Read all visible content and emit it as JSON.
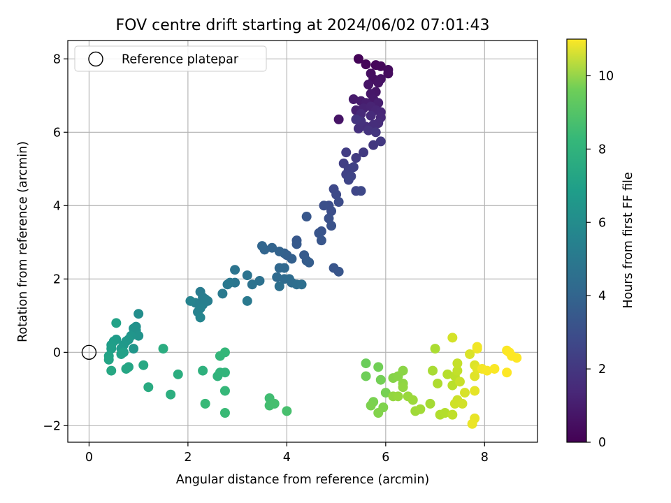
{
  "chart_data": {
    "type": "scatter",
    "title": "FOV centre drift starting at 2024/06/02 07:01:43",
    "xlabel": "Angular distance from reference (arcmin)",
    "ylabel": "Rotation from reference (arcmin)",
    "xlim": [
      -0.43,
      9.07
    ],
    "ylim": [
      -2.45,
      8.5
    ],
    "xticks": [
      0,
      2,
      4,
      6,
      8
    ],
    "yticks": [
      -2,
      0,
      2,
      4,
      6,
      8
    ],
    "grid": true,
    "legend": {
      "placement": "top-left",
      "entries": [
        "Reference platepar"
      ]
    },
    "reference_point": {
      "x": 0,
      "y": 0
    },
    "colorbar": {
      "label": "Hours from first FF file",
      "colormap": "viridis",
      "range": [
        0,
        11
      ],
      "ticks": [
        0,
        2,
        4,
        6,
        8,
        10
      ]
    },
    "points_xyc": [
      [
        5.45,
        8.0,
        0.1
      ],
      [
        5.6,
        7.85,
        0.15
      ],
      [
        5.8,
        7.83,
        0.2
      ],
      [
        5.9,
        7.8,
        0.25
      ],
      [
        6.05,
        7.7,
        0.3
      ],
      [
        6.05,
        7.6,
        0.35
      ],
      [
        5.7,
        7.6,
        0.4
      ],
      [
        5.75,
        7.45,
        0.45
      ],
      [
        5.9,
        7.45,
        0.5
      ],
      [
        5.85,
        7.35,
        0.55
      ],
      [
        5.65,
        7.3,
        0.6
      ],
      [
        5.8,
        7.1,
        0.65
      ],
      [
        5.7,
        7.05,
        0.7
      ],
      [
        5.75,
        6.9,
        0.75
      ],
      [
        5.35,
        6.9,
        0.8
      ],
      [
        5.5,
        6.85,
        0.85
      ],
      [
        5.6,
        6.8,
        0.9
      ],
      [
        5.85,
        6.8,
        0.95
      ],
      [
        5.05,
        6.35,
        0.6
      ],
      [
        5.4,
        6.6,
        1.0
      ],
      [
        5.55,
        6.65,
        1.05
      ],
      [
        5.7,
        6.7,
        1.1
      ],
      [
        5.8,
        6.6,
        1.15
      ],
      [
        5.9,
        6.55,
        1.2
      ],
      [
        5.9,
        6.4,
        1.25
      ],
      [
        5.5,
        6.5,
        1.3
      ],
      [
        5.7,
        6.45,
        1.35
      ],
      [
        5.85,
        6.25,
        1.4
      ],
      [
        5.75,
        6.2,
        1.45
      ],
      [
        5.6,
        6.15,
        1.5
      ],
      [
        5.45,
        6.1,
        1.55
      ],
      [
        5.5,
        6.3,
        1.6
      ],
      [
        5.65,
        6.05,
        1.65
      ],
      [
        5.4,
        6.35,
        1.7
      ],
      [
        5.8,
        6.0,
        1.75
      ],
      [
        5.75,
        5.65,
        1.8
      ],
      [
        5.9,
        5.75,
        1.85
      ],
      [
        5.55,
        5.45,
        1.9
      ],
      [
        5.4,
        5.3,
        1.95
      ],
      [
        5.2,
        5.45,
        2.0
      ],
      [
        5.15,
        5.15,
        2.05
      ],
      [
        5.25,
        5.0,
        2.1
      ],
      [
        5.35,
        5.05,
        2.15
      ],
      [
        5.2,
        4.85,
        2.2
      ],
      [
        5.3,
        4.8,
        2.25
      ],
      [
        5.25,
        4.7,
        2.3
      ],
      [
        5.4,
        4.4,
        2.35
      ],
      [
        5.5,
        4.4,
        2.4
      ],
      [
        4.95,
        4.45,
        2.45
      ],
      [
        5.0,
        4.3,
        2.5
      ],
      [
        5.05,
        4.1,
        2.55
      ],
      [
        4.85,
        4.0,
        2.6
      ],
      [
        4.9,
        3.85,
        2.65
      ],
      [
        4.75,
        4.0,
        2.7
      ],
      [
        4.85,
        3.65,
        2.75
      ],
      [
        4.9,
        3.45,
        2.8
      ],
      [
        4.7,
        3.3,
        2.85
      ],
      [
        4.65,
        3.25,
        2.9
      ],
      [
        4.7,
        3.05,
        2.95
      ],
      [
        4.4,
        3.7,
        3.0
      ],
      [
        4.95,
        2.3,
        2.9
      ],
      [
        5.05,
        2.2,
        2.95
      ],
      [
        4.2,
        3.05,
        3.05
      ],
      [
        4.2,
        2.95,
        3.1
      ],
      [
        4.35,
        2.65,
        3.15
      ],
      [
        4.4,
        2.5,
        3.2
      ],
      [
        4.45,
        2.45,
        3.25
      ],
      [
        4.0,
        2.65,
        3.3
      ],
      [
        4.1,
        2.55,
        3.35
      ],
      [
        3.95,
        2.7,
        3.4
      ],
      [
        3.85,
        2.75,
        3.45
      ],
      [
        3.7,
        2.85,
        3.5
      ],
      [
        3.55,
        2.8,
        3.55
      ],
      [
        3.5,
        2.9,
        3.6
      ],
      [
        3.85,
        2.3,
        3.65
      ],
      [
        3.95,
        2.3,
        3.7
      ],
      [
        3.8,
        2.05,
        3.75
      ],
      [
        3.95,
        2.0,
        3.8
      ],
      [
        4.05,
        2.0,
        3.85
      ],
      [
        4.1,
        1.9,
        3.9
      ],
      [
        4.2,
        1.85,
        3.95
      ],
      [
        4.3,
        1.85,
        4.0
      ],
      [
        3.85,
        1.8,
        4.05
      ],
      [
        3.45,
        1.95,
        4.1
      ],
      [
        3.3,
        1.85,
        4.15
      ],
      [
        3.2,
        2.1,
        4.2
      ],
      [
        2.95,
        2.25,
        4.25
      ],
      [
        2.95,
        1.9,
        4.3
      ],
      [
        2.85,
        1.9,
        4.35
      ],
      [
        2.8,
        1.85,
        4.4
      ],
      [
        3.2,
        1.4,
        4.45
      ],
      [
        2.7,
        1.6,
        4.5
      ],
      [
        2.25,
        1.65,
        4.55
      ],
      [
        2.3,
        1.5,
        4.6
      ],
      [
        2.35,
        1.45,
        4.65
      ],
      [
        2.4,
        1.4,
        4.7
      ],
      [
        2.3,
        1.3,
        4.75
      ],
      [
        2.15,
        1.35,
        4.8
      ],
      [
        2.25,
        1.2,
        4.85
      ],
      [
        2.2,
        1.1,
        4.9
      ],
      [
        2.05,
        1.4,
        4.95
      ],
      [
        2.25,
        0.95,
        5.0
      ],
      [
        1.0,
        1.05,
        5.4
      ],
      [
        0.95,
        0.7,
        5.5
      ],
      [
        0.95,
        0.6,
        5.55
      ],
      [
        0.9,
        0.65,
        5.6
      ],
      [
        1.0,
        0.45,
        5.65
      ],
      [
        0.85,
        0.45,
        5.7
      ],
      [
        0.9,
        0.1,
        5.75
      ],
      [
        0.8,
        0.35,
        5.8
      ],
      [
        0.75,
        0.3,
        5.85
      ],
      [
        0.7,
        0.2,
        5.9
      ],
      [
        0.65,
        0.1,
        5.95
      ],
      [
        0.55,
        0.35,
        6.0
      ],
      [
        0.5,
        0.3,
        6.05
      ],
      [
        0.45,
        0.2,
        6.1
      ],
      [
        0.45,
        0.1,
        6.15
      ],
      [
        0.7,
        0.0,
        6.2
      ],
      [
        0.65,
        -0.05,
        6.25
      ],
      [
        0.55,
        0.8,
        6.3
      ],
      [
        0.4,
        -0.1,
        6.35
      ],
      [
        0.4,
        -0.2,
        6.4
      ],
      [
        0.8,
        -0.4,
        6.45
      ],
      [
        0.75,
        -0.45,
        6.5
      ],
      [
        0.45,
        -0.5,
        6.55
      ],
      [
        1.1,
        -0.35,
        6.6
      ],
      [
        1.2,
        -0.95,
        6.7
      ],
      [
        1.5,
        0.1,
        6.8
      ],
      [
        1.8,
        -0.6,
        6.85
      ],
      [
        1.65,
        -1.15,
        6.9
      ],
      [
        2.3,
        -0.5,
        7.0
      ],
      [
        2.6,
        -0.65,
        7.1
      ],
      [
        2.65,
        -0.55,
        7.15
      ],
      [
        2.75,
        -0.55,
        7.2
      ],
      [
        2.65,
        -0.1,
        7.25
      ],
      [
        2.75,
        0.0,
        7.3
      ],
      [
        2.75,
        -1.05,
        7.35
      ],
      [
        2.35,
        -1.4,
        7.4
      ],
      [
        2.75,
        -1.65,
        7.45
      ],
      [
        3.65,
        -1.25,
        7.6
      ],
      [
        3.65,
        -1.45,
        7.65
      ],
      [
        3.75,
        -1.4,
        7.7
      ],
      [
        4.0,
        -1.6,
        7.75
      ],
      [
        5.6,
        -0.3,
        8.5
      ],
      [
        5.6,
        -0.65,
        8.55
      ],
      [
        5.85,
        -0.4,
        8.6
      ],
      [
        5.9,
        -0.75,
        8.65
      ],
      [
        6.0,
        -1.1,
        8.7
      ],
      [
        5.75,
        -1.35,
        8.75
      ],
      [
        5.7,
        -1.45,
        8.8
      ],
      [
        5.95,
        -1.5,
        8.85
      ],
      [
        5.85,
        -1.65,
        8.9
      ],
      [
        6.15,
        -0.7,
        8.95
      ],
      [
        6.25,
        -0.65,
        9.0
      ],
      [
        6.35,
        -0.5,
        9.05
      ],
      [
        6.35,
        -0.85,
        9.1
      ],
      [
        6.35,
        -0.95,
        9.15
      ],
      [
        6.15,
        -1.2,
        9.2
      ],
      [
        6.25,
        -1.2,
        9.25
      ],
      [
        6.45,
        -1.2,
        9.3
      ],
      [
        6.55,
        -1.3,
        9.35
      ],
      [
        6.6,
        -1.6,
        9.4
      ],
      [
        6.7,
        -1.55,
        9.45
      ],
      [
        6.9,
        -1.4,
        9.5
      ],
      [
        6.95,
        -0.5,
        9.55
      ],
      [
        7.0,
        0.1,
        9.6
      ],
      [
        7.05,
        -0.85,
        9.65
      ],
      [
        7.1,
        -1.7,
        9.7
      ],
      [
        7.2,
        -1.65,
        9.75
      ],
      [
        7.25,
        -0.6,
        9.8
      ],
      [
        7.35,
        -0.9,
        9.85
      ],
      [
        7.4,
        -0.65,
        9.9
      ],
      [
        7.35,
        -1.7,
        9.95
      ],
      [
        7.45,
        -0.5,
        10.0
      ],
      [
        7.45,
        -0.3,
        10.05
      ],
      [
        7.5,
        -0.8,
        10.1
      ],
      [
        7.45,
        -1.3,
        10.15
      ],
      [
        7.4,
        -1.4,
        10.2
      ],
      [
        7.55,
        -1.4,
        10.25
      ],
      [
        7.35,
        0.4,
        10.3
      ],
      [
        7.6,
        -1.1,
        10.35
      ],
      [
        7.7,
        -0.05,
        10.4
      ],
      [
        7.8,
        -0.35,
        10.45
      ],
      [
        7.8,
        -0.65,
        10.5
      ],
      [
        7.85,
        -0.45,
        10.55
      ],
      [
        7.8,
        -1.05,
        10.6
      ],
      [
        7.8,
        -1.8,
        10.65
      ],
      [
        7.75,
        -1.95,
        10.7
      ],
      [
        7.85,
        0.1,
        10.75
      ],
      [
        7.85,
        0.15,
        10.8
      ],
      [
        7.95,
        -0.45,
        10.85
      ],
      [
        8.05,
        -0.5,
        10.9
      ],
      [
        8.2,
        -0.45,
        10.95
      ],
      [
        8.45,
        -0.55,
        11.0
      ],
      [
        8.45,
        0.05,
        10.95
      ],
      [
        8.5,
        0.0,
        11.0
      ],
      [
        8.55,
        -0.1,
        11.0
      ],
      [
        8.65,
        -0.15,
        11.0
      ]
    ]
  }
}
